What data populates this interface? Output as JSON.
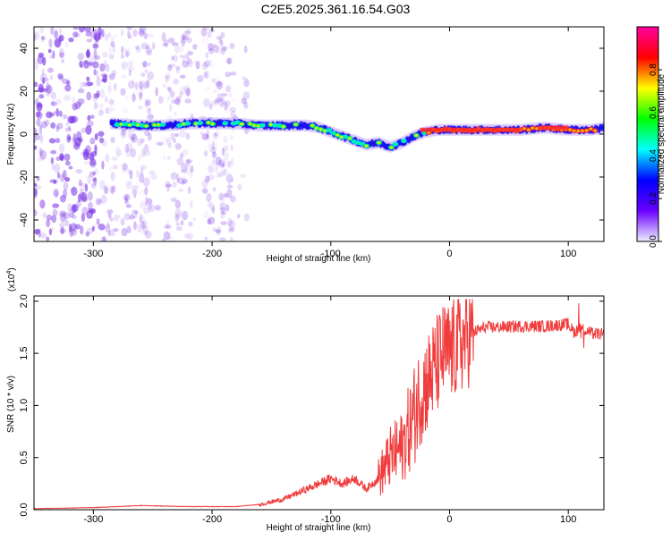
{
  "title": "C2E5.2025.361.16.54.G03",
  "colors": {
    "snr_line": "#f03c3c",
    "scatter": "#7a35e6",
    "axis": "#000000"
  },
  "chart_data": [
    {
      "type": "heatmap",
      "title": "C2E5.2025.361.16.54.G03",
      "xlabel": "Height of straight line (km)",
      "ylabel": "Frequency (Hz)",
      "xlim": [
        -350,
        130
      ],
      "ylim": [
        -50,
        50
      ],
      "xticks": [
        -300,
        -200,
        -100,
        0,
        100
      ],
      "yticks": [
        -40,
        -20,
        0,
        20,
        40
      ],
      "colorbar": {
        "label": "Normalized spectral amplitude",
        "ticks": [
          "0.0",
          "0.2",
          "0.4",
          "0.6",
          "0.8"
        ],
        "range": [
          0,
          1
        ],
        "stops": [
          "#f0f0ff",
          "#6a00ff",
          "#0000ff",
          "#00ffff",
          "#00ff00",
          "#ffff00",
          "#ff0000",
          "#ff00a0"
        ]
      },
      "ridge": {
        "x": [
          -285,
          -260,
          -240,
          -220,
          -200,
          -180,
          -160,
          -140,
          -120,
          -110,
          -100,
          -90,
          -80,
          -70,
          -60,
          -50,
          -40,
          -30,
          -20,
          -10,
          0,
          20,
          40,
          60,
          80,
          100,
          120,
          130
        ],
        "y": [
          5,
          4,
          4,
          5,
          5,
          5,
          4,
          4,
          4,
          3,
          1,
          -1,
          -3,
          -5,
          -4,
          -6,
          -4,
          -1,
          1,
          2,
          2,
          2,
          2,
          2,
          3,
          2,
          2,
          3
        ]
      },
      "noise_band": {
        "x": [
          -350,
          -170
        ],
        "density": "high"
      }
    },
    {
      "type": "line",
      "xlabel": "Height of straight line (km)",
      "ylabel": "SNR (10 * v/v)",
      "multiplier": "(x10",
      "multiplier_exp": "4",
      "multiplier_close": ")",
      "xlim": [
        -350,
        130
      ],
      "ylim": [
        0,
        2.05
      ],
      "xticks": [
        -300,
        -200,
        -100,
        0,
        100
      ],
      "yticks": [
        "0.0",
        "0.5",
        "1.0",
        "1.5",
        "2.0"
      ],
      "series": [
        {
          "name": "SNR",
          "x": [
            -350,
            -300,
            -260,
            -220,
            -180,
            -160,
            -140,
            -120,
            -100,
            -90,
            -80,
            -70,
            -60,
            -50,
            -40,
            -30,
            -25,
            -20,
            -15,
            -10,
            -5,
            0,
            10,
            20,
            30,
            40,
            60,
            80,
            100,
            105,
            110,
            115,
            120,
            130
          ],
          "values": [
            0.01,
            0.02,
            0.04,
            0.03,
            0.03,
            0.05,
            0.1,
            0.2,
            0.3,
            0.25,
            0.3,
            0.2,
            0.3,
            0.5,
            0.6,
            0.9,
            1.1,
            1.2,
            1.3,
            1.4,
            1.5,
            1.5,
            1.6,
            1.7,
            1.75,
            1.75,
            1.76,
            1.76,
            1.78,
            1.7,
            1.75,
            1.72,
            1.69,
            1.68
          ]
        }
      ]
    }
  ]
}
